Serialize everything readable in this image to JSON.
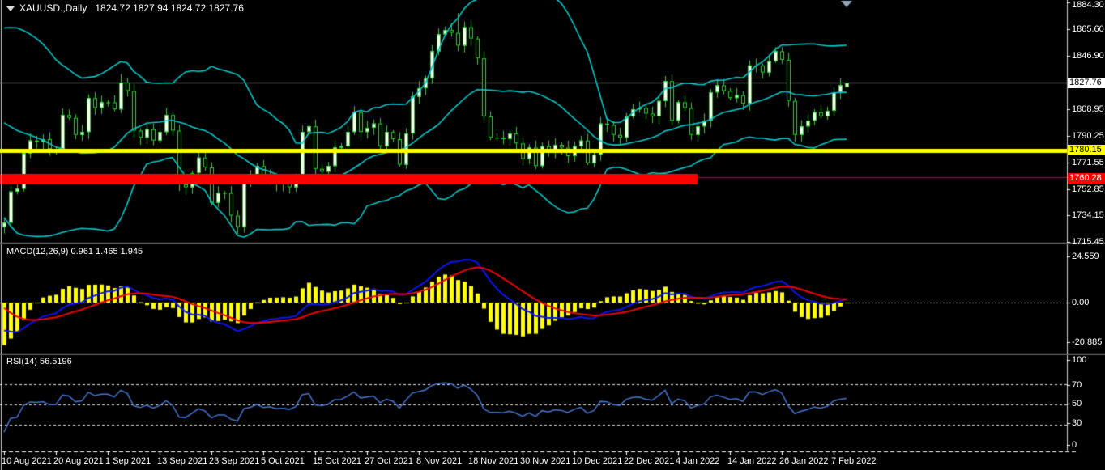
{
  "header": {
    "symbol_period": "XAUUSD.,Daily",
    "ohlc": "1824.72 1827.94 1824.72 1827.76"
  },
  "colors": {
    "background": "#000000",
    "candle_outline": "#00ee00",
    "bull_body": "#ffffff",
    "bear_body": "#000000",
    "bollinger": "#00c8c8",
    "yellow_level": "#ffff00",
    "red_zone": "#ff0000",
    "thin_red_line": "#cc0000",
    "current_price_line": "#b9b9b9",
    "macd_histogram": "#ffff00",
    "macd_line": "#0a16ee",
    "macd_signal": "#ee0000",
    "rsi_line": "#4575d0",
    "axis_text": "#ffffff",
    "separator": "#cfcfcf",
    "end_marker": "#93a7bb"
  },
  "chart_data": {
    "type": "candlestick",
    "symbol": "XAUUSD",
    "timeframe": "Daily",
    "title": "XAUUSD.,Daily 1824.72 1827.94 1824.72 1827.76",
    "x_labels": [
      "10 Aug 2021",
      "20 Aug 2021",
      "1 Sep 2021",
      "13 Sep 2021",
      "23 Sep 2021",
      "5 Oct 2021",
      "15 Oct 2021",
      "27 Oct 2021",
      "8 Nov 2021",
      "18 Nov 2021",
      "30 Nov 2021",
      "10 Dec 2021",
      "22 Dec 2021",
      "4 Jan 2022",
      "14 Jan 2022",
      "26 Jan 2022",
      "7 Feb 2022"
    ],
    "label_every_n_bars": 8,
    "pre_closes": [
      1779,
      1783,
      1778,
      1772,
      1777,
      1783,
      1787,
      1791,
      1795,
      1803,
      1807,
      1804,
      1810,
      1805,
      1798,
      1802,
      1808,
      1806,
      1812,
      1818,
      1822,
      1825,
      1829,
      1831,
      1828,
      1822,
      1817,
      1811,
      1814,
      1807,
      1802,
      1794,
      1763,
      1729,
      1726
    ],
    "closes": [
      1729,
      1751,
      1753,
      1778,
      1787,
      1786,
      1788,
      1781,
      1781,
      1805,
      1803,
      1791,
      1793,
      1817,
      1810,
      1814,
      1814,
      1809,
      1828,
      1822,
      1794,
      1789,
      1795,
      1787,
      1793,
      1805,
      1794,
      1756,
      1754,
      1764,
      1775,
      1768,
      1743,
      1750,
      1750,
      1734,
      1726,
      1757,
      1761,
      1769,
      1760,
      1762,
      1756,
      1757,
      1754,
      1760,
      1793,
      1797,
      1767,
      1765,
      1769,
      1782,
      1783,
      1793,
      1807,
      1793,
      1796,
      1799,
      1783,
      1793,
      1788,
      1770,
      1792,
      1818,
      1824,
      1831,
      1850,
      1862,
      1865,
      1863,
      1854,
      1867,
      1859,
      1845,
      1804,
      1789,
      1789,
      1788,
      1792,
      1785,
      1774,
      1782,
      1769,
      1783,
      1779,
      1784,
      1782,
      1776,
      1783,
      1787,
      1771,
      1777,
      1799,
      1798,
      1791,
      1789,
      1804,
      1809,
      1810,
      1806,
      1804,
      1815,
      1829,
      1801,
      1814,
      1810,
      1791,
      1797,
      1801,
      1821,
      1826,
      1822,
      1817,
      1819,
      1813,
      1840,
      1840,
      1835,
      1843,
      1850,
      1844,
      1815,
      1791,
      1797,
      1801,
      1807,
      1804,
      1808,
      1821,
      1826,
      1827.76
    ],
    "wick_overrides": {
      "18": [
        1834,
        null
      ],
      "36": [
        null,
        1721
      ],
      "70": [
        1877,
        null
      ],
      "119": [
        1853,
        null
      ]
    },
    "last_candle": {
      "open": 1824.72,
      "high": 1827.94,
      "low": 1824.72,
      "close": 1827.76
    },
    "current_price": 1827.76,
    "levels": {
      "yellow_line_price": 1780.15,
      "red_zone_price": 1760.28,
      "red_zone_ends_at_bar": 107
    },
    "y_axis_labels": [
      "1884.30",
      "1865.60",
      "1846.90",
      "1808.95",
      "1790.25",
      "1771.55",
      "1752.85",
      "1734.15",
      "1715.45"
    ],
    "price_tags": {
      "current": "1827.76",
      "yellow": "1780.15",
      "red": "1760.28"
    },
    "indicators": {
      "bollinger": {
        "period": 20,
        "deviation": 2
      },
      "macd": {
        "label": "MACD(12,26,9) 0.961 1.465 1.945",
        "params": [
          12,
          26,
          9
        ],
        "values": [
          0.961,
          1.465,
          1.945
        ],
        "scale_max": "24.559",
        "scale_zero": "0.00",
        "scale_min": "-20.885"
      },
      "rsi": {
        "label": "RSI(14) 56.5196",
        "period": 14,
        "value": 56.5196,
        "scale": [
          "100",
          "70",
          "50",
          "30",
          "0"
        ],
        "level_lines": [
          70,
          50,
          30
        ]
      }
    }
  }
}
